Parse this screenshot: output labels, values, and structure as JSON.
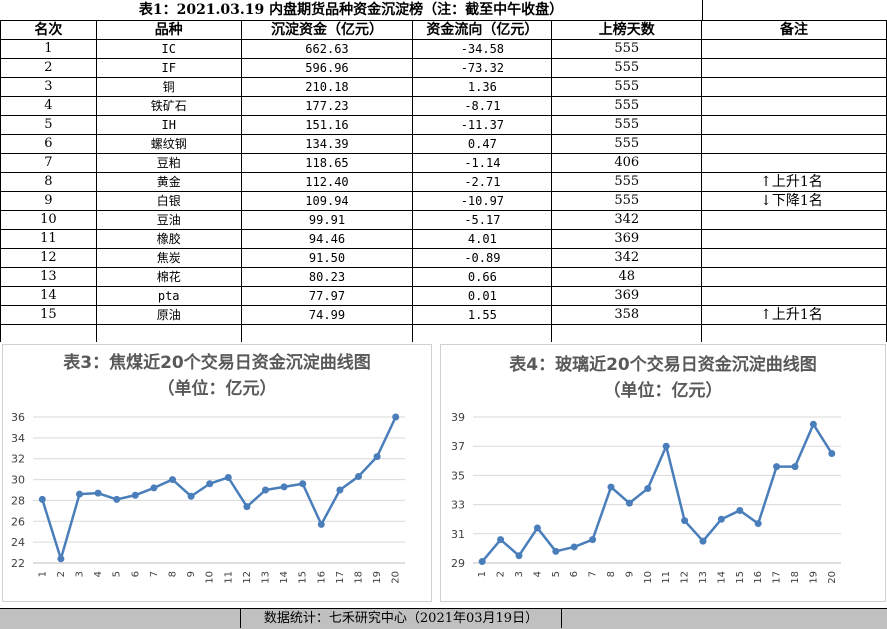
{
  "table": {
    "title": "表1：2021.03.19 内盘期货品种资金沉淀榜（注：截至中午收盘）",
    "headers": [
      "名次",
      "品种",
      "沉淀资金（亿元）",
      "资金流向（亿元）",
      "上榜天数",
      "备注"
    ],
    "rows": [
      {
        "rank": "1",
        "name": "IC",
        "cap": "662.63",
        "flow": "-34.58",
        "days": "555",
        "note": ""
      },
      {
        "rank": "2",
        "name": "IF",
        "cap": "596.96",
        "flow": "-73.32",
        "days": "555",
        "note": ""
      },
      {
        "rank": "3",
        "name": "铜",
        "cap": "210.18",
        "flow": "1.36",
        "days": "555",
        "note": ""
      },
      {
        "rank": "4",
        "name": "铁矿石",
        "cap": "177.23",
        "flow": "-8.71",
        "days": "555",
        "note": ""
      },
      {
        "rank": "5",
        "name": "IH",
        "cap": "151.16",
        "flow": "-11.37",
        "days": "555",
        "note": ""
      },
      {
        "rank": "6",
        "name": "螺纹钢",
        "cap": "134.39",
        "flow": "0.47",
        "days": "555",
        "note": ""
      },
      {
        "rank": "7",
        "name": "豆粕",
        "cap": "118.65",
        "flow": "-1.14",
        "days": "406",
        "note": ""
      },
      {
        "rank": "8",
        "name": "黄金",
        "cap": "112.40",
        "flow": "-2.71",
        "days": "555",
        "note": "↑上升1名"
      },
      {
        "rank": "9",
        "name": "白银",
        "cap": "109.94",
        "flow": "-10.97",
        "days": "555",
        "note": "↓下降1名"
      },
      {
        "rank": "10",
        "name": "豆油",
        "cap": "99.91",
        "flow": "-5.17",
        "days": "342",
        "note": ""
      },
      {
        "rank": "11",
        "name": "橡胶",
        "cap": "94.46",
        "flow": "4.01",
        "days": "369",
        "note": ""
      },
      {
        "rank": "12",
        "name": "焦炭",
        "cap": "91.50",
        "flow": "-0.89",
        "days": "342",
        "note": ""
      },
      {
        "rank": "13",
        "name": "棉花",
        "cap": "80.23",
        "flow": "0.66",
        "days": "48",
        "note": ""
      },
      {
        "rank": "14",
        "name": "pta",
        "cap": "77.97",
        "flow": "0.01",
        "days": "369",
        "note": ""
      },
      {
        "rank": "15",
        "name": "原油",
        "cap": "74.99",
        "flow": "1.55",
        "days": "358",
        "note": "↑上升1名"
      }
    ]
  },
  "colors": {
    "line": "#4a7ebb",
    "grid": "#d9d9d9",
    "axis_text": "#404040",
    "title": "#595959",
    "footer_bg": "#c0c0c0"
  },
  "chart_data": [
    {
      "type": "line",
      "title": "表3：焦煤近20个交易日资金沉淀曲线图",
      "subtitle": "（单位：亿元）",
      "x": [
        "1",
        "2",
        "3",
        "4",
        "5",
        "6",
        "7",
        "8",
        "9",
        "10",
        "11",
        "12",
        "13",
        "14",
        "15",
        "16",
        "17",
        "18",
        "19",
        "20"
      ],
      "series": [
        {
          "values": [
            28.1,
            22.4,
            28.6,
            28.7,
            28.1,
            28.5,
            29.2,
            30.0,
            28.4,
            29.6,
            30.2,
            27.4,
            29.0,
            29.3,
            29.6,
            25.7,
            29.0,
            30.3,
            32.2,
            36.0
          ]
        }
      ],
      "yticks": [
        22,
        24,
        26,
        28,
        30,
        32,
        34,
        36
      ],
      "ylim": [
        22,
        36
      ],
      "grid": true,
      "legend": "none"
    },
    {
      "type": "line",
      "title": "表4：玻璃近20个交易日资金沉淀曲线图",
      "subtitle": "（单位：亿元）",
      "x": [
        "1",
        "2",
        "3",
        "4",
        "5",
        "6",
        "7",
        "8",
        "9",
        "10",
        "11",
        "12",
        "13",
        "14",
        "15",
        "16",
        "17",
        "18",
        "19",
        "20"
      ],
      "series": [
        {
          "values": [
            29.1,
            30.6,
            29.5,
            31.4,
            29.8,
            30.1,
            30.6,
            34.2,
            33.1,
            34.1,
            37.0,
            31.9,
            30.5,
            32.0,
            32.6,
            31.7,
            35.6,
            35.6,
            38.5,
            36.5
          ]
        }
      ],
      "yticks": [
        29,
        31,
        33,
        35,
        37,
        39
      ],
      "ylim": [
        29,
        39
      ],
      "grid": true,
      "legend": "none"
    }
  ],
  "footer": "数据统计：七禾研究中心（2021年03月19日）"
}
